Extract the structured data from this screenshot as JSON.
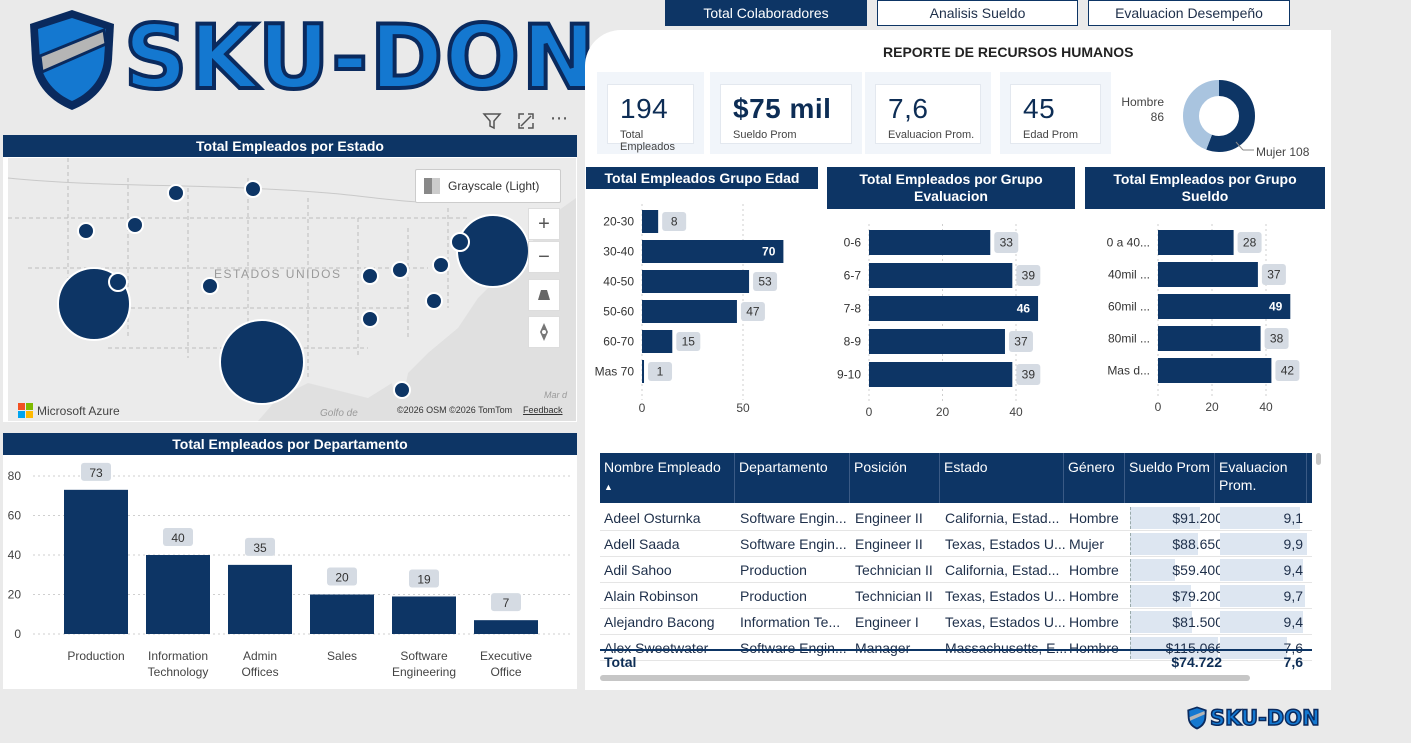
{
  "tabs": [
    {
      "label": "Total Colaboradores",
      "active": true
    },
    {
      "label": "Analisis Sueldo",
      "active": false
    },
    {
      "label": "Evaluacion Desempeño",
      "active": false
    }
  ],
  "logo": {
    "text": "SKU-DON",
    "footer_text": "SKU-DON"
  },
  "report_title": "REPORTE DE RECURSOS HUMANOS",
  "kpis": [
    {
      "value": "194",
      "label": "Total Empleados"
    },
    {
      "value": "$75 mil",
      "label": "Sueldo Prom"
    },
    {
      "value": "7,6",
      "label": "Evaluacion Prom."
    },
    {
      "value": "45",
      "label": "Edad Prom"
    }
  ],
  "gender_donut": {
    "hombre_label": "Hombre",
    "hombre_value": "86",
    "mujer_label": "Mujer 108",
    "values": [
      86,
      108
    ],
    "colors": [
      "#a9c4df",
      "#0d3565"
    ]
  },
  "map": {
    "title": "Total Empleados por Estado",
    "style_label": "Grayscale (Light)",
    "country_label": "ESTADOS UNIDOS",
    "gulf_label": "Golfo de",
    "sea_label": "Mar d",
    "provider": "Microsoft Azure",
    "copyright": "©2026 OSM  ©2026 TomTom",
    "feedback": "Feedback",
    "zoom_in": "+",
    "zoom_out": "−"
  },
  "dept_chart": {
    "title": "Total Empleados por Departamento",
    "chart_data": {
      "type": "bar",
      "categories": [
        "Production",
        "Information Technology",
        "Admin Offices",
        "Sales",
        "Software Engineering",
        "Executive Office"
      ],
      "category_lines": [
        [
          "Production"
        ],
        [
          "Information",
          "Technology"
        ],
        [
          "Admin",
          "Offices"
        ],
        [
          "Sales"
        ],
        [
          "Software",
          "Engineering"
        ],
        [
          "Executive",
          "Office"
        ]
      ],
      "values": [
        73,
        40,
        35,
        20,
        19,
        7
      ],
      "ylim": [
        0,
        80
      ],
      "yticks": [
        0,
        20,
        40,
        60,
        80
      ]
    }
  },
  "age_chart": {
    "title": "Total Empleados Grupo Edad",
    "chart_data": {
      "type": "bar",
      "categories": [
        "20-30",
        "30-40",
        "40-50",
        "50-60",
        "60-70",
        "Mas 70"
      ],
      "values": [
        8,
        70,
        53,
        47,
        15,
        1
      ],
      "xticks": [
        0,
        50
      ]
    }
  },
  "eval_chart": {
    "title": "Total Empleados por Grupo Evaluacion",
    "chart_data": {
      "type": "bar",
      "categories": [
        "0-6",
        "6-7",
        "7-8",
        "8-9",
        "9-10"
      ],
      "values": [
        33,
        39,
        46,
        37,
        39
      ],
      "xticks": [
        0,
        20,
        40
      ]
    }
  },
  "salary_chart": {
    "title": "Total Empleados por Grupo Sueldo",
    "chart_data": {
      "type": "bar",
      "categories": [
        "0 a 40...",
        "40mil ...",
        "60mil ...",
        "80mil ...",
        "Mas d..."
      ],
      "values": [
        28,
        37,
        49,
        38,
        42
      ],
      "xticks": [
        0,
        20,
        40
      ]
    }
  },
  "table": {
    "headers": [
      "Nombre Empleado",
      "Departamento",
      "Posición",
      "Estado",
      "Género",
      "Sueldo Prom",
      "Evaluacion Prom."
    ],
    "rows": [
      [
        "Adeel Osturnka",
        "Software Engin...",
        "Engineer II",
        "California, Estad...",
        "Hombre",
        "$91.200",
        "9,1"
      ],
      [
        "Adell Saada",
        "Software Engin...",
        "Engineer II",
        "Texas, Estados U...",
        "Mujer",
        "$88.650",
        "9,9"
      ],
      [
        "Adil Sahoo",
        "Production",
        "Technician II",
        "California, Estad...",
        "Hombre",
        "$59.400",
        "9,4"
      ],
      [
        "Alain Robinson",
        "Production",
        "Technician II",
        "Texas, Estados U...",
        "Hombre",
        "$79.200",
        "9,7"
      ],
      [
        "Alejandro Bacong",
        "Information Te...",
        "Engineer I",
        "Texas, Estados U...",
        "Hombre",
        "$81.500",
        "9,4"
      ],
      [
        "Alex Sweetwater",
        "Software Engin...",
        "Manager",
        "Massachusetts, E...",
        "Hombre",
        "$115.066",
        "7,6"
      ]
    ],
    "total_label": "Total",
    "total_sueldo": "$74.722",
    "total_eval": "7,6"
  }
}
